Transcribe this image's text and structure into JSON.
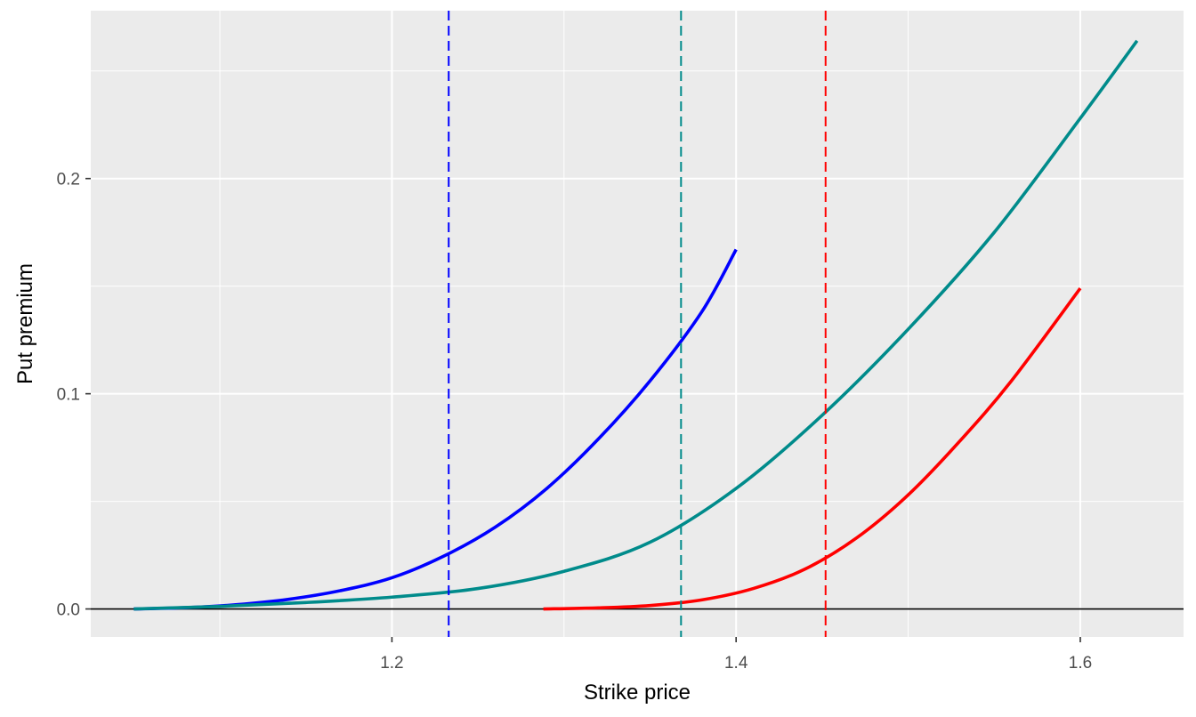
{
  "chart_data": {
    "type": "line",
    "title": "",
    "xlabel": "Strike price",
    "ylabel": "Put premium",
    "xlim": [
      1.025,
      1.66
    ],
    "ylim": [
      -0.013,
      0.278
    ],
    "x_ticks": [
      1.2,
      1.4,
      1.6
    ],
    "x_tick_labels": [
      "1.2",
      "1.4",
      "1.6"
    ],
    "x_minor": [
      1.1,
      1.3,
      1.5
    ],
    "y_ticks": [
      0.0,
      0.1,
      0.2
    ],
    "y_tick_labels": [
      "0.0",
      "0.1",
      "0.2"
    ],
    "y_minor": [
      0.05,
      0.15,
      0.25
    ],
    "grid": true,
    "background": "#EBEBEB",
    "hline": {
      "y": 0.0,
      "color": "#000000"
    },
    "series": [
      {
        "color": "#0000FF",
        "x": [
          1.05,
          1.08,
          1.11,
          1.14,
          1.17,
          1.2,
          1.23,
          1.26,
          1.29,
          1.32,
          1.35,
          1.38,
          1.4
        ],
        "y": [
          0.0,
          0.0006,
          0.002,
          0.0045,
          0.0085,
          0.0145,
          0.0245,
          0.038,
          0.056,
          0.079,
          0.106,
          0.138,
          0.167
        ]
      },
      {
        "color": "#008B8B",
        "x": [
          1.05,
          1.1,
          1.15,
          1.2,
          1.25,
          1.3,
          1.35,
          1.4,
          1.45,
          1.5,
          1.55,
          1.6,
          1.633
        ],
        "y": [
          0.0,
          0.0012,
          0.003,
          0.0055,
          0.0095,
          0.0175,
          0.031,
          0.056,
          0.09,
          0.13,
          0.175,
          0.228,
          0.264
        ]
      },
      {
        "color": "#FF0000",
        "x": [
          1.288,
          1.32,
          1.35,
          1.38,
          1.41,
          1.44,
          1.47,
          1.5,
          1.53,
          1.56,
          1.6
        ],
        "y": [
          0.0,
          0.0005,
          0.0016,
          0.0042,
          0.0095,
          0.0185,
          0.033,
          0.053,
          0.078,
          0.106,
          0.149
        ]
      }
    ],
    "vlines": [
      {
        "x": 1.233,
        "color": "#0000FF",
        "dash": "dashed"
      },
      {
        "x": 1.368,
        "color": "#008B8B",
        "dash": "dashed"
      },
      {
        "x": 1.452,
        "color": "#FF0000",
        "dash": "dashed"
      }
    ]
  }
}
